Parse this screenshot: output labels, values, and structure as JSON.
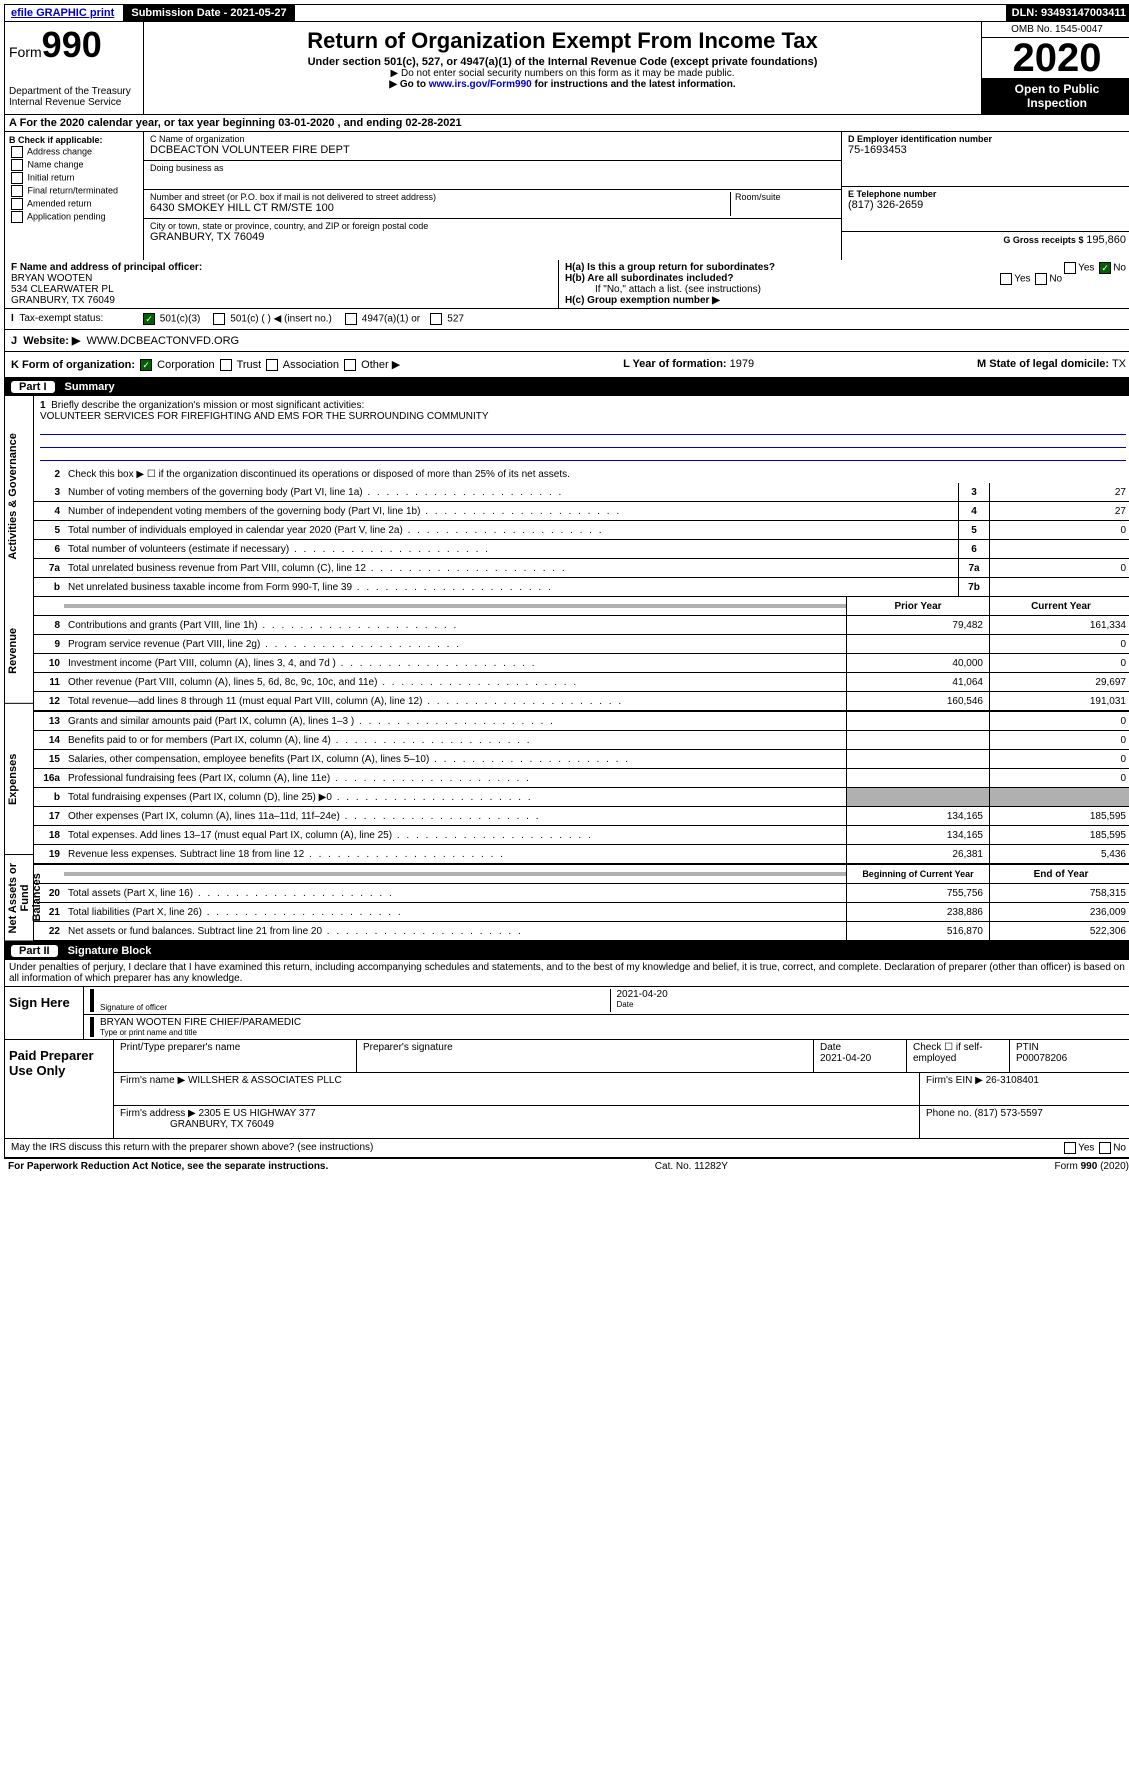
{
  "topbar": {
    "efile": "efile GRAPHIC print",
    "submission": "Submission Date - 2021-05-27",
    "dln": "DLN: 93493147003411"
  },
  "header": {
    "form_label": "Form",
    "form_num": "990",
    "dept": "Department of the Treasury",
    "irs": "Internal Revenue Service",
    "title": "Return of Organization Exempt From Income Tax",
    "subtitle": "Under section 501(c), 527, or 4947(a)(1) of the Internal Revenue Code (except private foundations)",
    "note1": "▶ Do not enter social security numbers on this form as it may be made public.",
    "note2_pre": "▶ Go to ",
    "note2_link": "www.irs.gov/Form990",
    "note2_post": " for instructions and the latest information.",
    "omb": "OMB No. 1545-0047",
    "year": "2020",
    "open": "Open to Public Inspection"
  },
  "rowA": "For the 2020 calendar year, or tax year beginning 03-01-2020    , and ending 02-28-2021",
  "blockB": {
    "title": "B Check if applicable:",
    "items": [
      "Address change",
      "Name change",
      "Initial return",
      "Final return/terminated",
      "Amended return",
      "Application pending"
    ]
  },
  "blockC": {
    "name_label": "C Name of organization",
    "name": "DCBEACTON VOLUNTEER FIRE DEPT",
    "dba_label": "Doing business as",
    "addr_label": "Number and street (or P.O. box if mail is not delivered to street address)",
    "addr": "6430 SMOKEY HILL CT RM/STE 100",
    "room_label": "Room/suite",
    "city_label": "City or town, state or province, country, and ZIP or foreign postal code",
    "city": "GRANBURY, TX  76049"
  },
  "blockD": {
    "ein_label": "D Employer identification number",
    "ein": "75-1693453",
    "phone_label": "E Telephone number",
    "phone": "(817) 326-2659",
    "gross_label": "G Gross receipts $",
    "gross": "195,860"
  },
  "blockF": {
    "label": "F  Name and address of principal officer:",
    "name": "BRYAN WOOTEN",
    "addr1": "534 CLEARWATER PL",
    "addr2": "GRANBURY, TX  76049"
  },
  "blockH": {
    "ha": "H(a)  Is this a group return for subordinates?",
    "hb": "H(b)  Are all subordinates included?",
    "hb_note": "If \"No,\" attach a list. (see instructions)",
    "hc": "H(c)  Group exemption number ▶"
  },
  "tax_status": {
    "label": "Tax-exempt status:",
    "opts": [
      "501(c)(3)",
      "501(c) (   ) ◀ (insert no.)",
      "4947(a)(1) or",
      "527"
    ]
  },
  "website": {
    "label": "Website: ▶",
    "val": "WWW.DCBEACTONVFD.ORG"
  },
  "rowK": {
    "k": "K Form of organization:",
    "opts": [
      "Corporation",
      "Trust",
      "Association",
      "Other ▶"
    ],
    "l_label": "L Year of formation:",
    "l": "1979",
    "m_label": "M State of legal domicile:",
    "m": "TX"
  },
  "part1": {
    "title": "Part I",
    "name": "Summary",
    "q1": "Briefly describe the organization's mission or most significant activities:",
    "mission": "VOLUNTEER SERVICES FOR FIREFIGHTING AND EMS FOR THE SURROUNDING COMMUNITY",
    "q2": "Check this box ▶ ☐  if the organization discontinued its operations or disposed of more than 25% of its net assets.",
    "side_labels": [
      "Activities & Governance",
      "Revenue",
      "Expenses",
      "Net Assets or Fund Balances"
    ],
    "col_headers": [
      "Prior Year",
      "Current Year"
    ],
    "col_headers2": [
      "Beginning of Current Year",
      "End of Year"
    ],
    "lines_gov": [
      {
        "n": "3",
        "d": "Number of voting members of the governing body (Part VI, line 1a)",
        "b": "3",
        "v": "27"
      },
      {
        "n": "4",
        "d": "Number of independent voting members of the governing body (Part VI, line 1b)",
        "b": "4",
        "v": "27"
      },
      {
        "n": "5",
        "d": "Total number of individuals employed in calendar year 2020 (Part V, line 2a)",
        "b": "5",
        "v": "0"
      },
      {
        "n": "6",
        "d": "Total number of volunteers (estimate if necessary)",
        "b": "6",
        "v": ""
      },
      {
        "n": "7a",
        "d": "Total unrelated business revenue from Part VIII, column (C), line 12",
        "b": "7a",
        "v": "0"
      },
      {
        "n": "b",
        "d": "Net unrelated business taxable income from Form 990-T, line 39",
        "b": "7b",
        "v": ""
      }
    ],
    "lines_rev": [
      {
        "n": "8",
        "d": "Contributions and grants (Part VIII, line 1h)",
        "p": "79,482",
        "c": "161,334"
      },
      {
        "n": "9",
        "d": "Program service revenue (Part VIII, line 2g)",
        "p": "",
        "c": "0"
      },
      {
        "n": "10",
        "d": "Investment income (Part VIII, column (A), lines 3, 4, and 7d )",
        "p": "40,000",
        "c": "0"
      },
      {
        "n": "11",
        "d": "Other revenue (Part VIII, column (A), lines 5, 6d, 8c, 9c, 10c, and 11e)",
        "p": "41,064",
        "c": "29,697"
      },
      {
        "n": "12",
        "d": "Total revenue—add lines 8 through 11 (must equal Part VIII, column (A), line 12)",
        "p": "160,546",
        "c": "191,031"
      }
    ],
    "lines_exp": [
      {
        "n": "13",
        "d": "Grants and similar amounts paid (Part IX, column (A), lines 1–3 )",
        "p": "",
        "c": "0"
      },
      {
        "n": "14",
        "d": "Benefits paid to or for members (Part IX, column (A), line 4)",
        "p": "",
        "c": "0"
      },
      {
        "n": "15",
        "d": "Salaries, other compensation, employee benefits (Part IX, column (A), lines 5–10)",
        "p": "",
        "c": "0"
      },
      {
        "n": "16a",
        "d": "Professional fundraising fees (Part IX, column (A), line 11e)",
        "p": "",
        "c": "0"
      },
      {
        "n": "b",
        "d": "Total fundraising expenses (Part IX, column (D), line 25) ▶0",
        "p": "gray",
        "c": "gray"
      },
      {
        "n": "17",
        "d": "Other expenses (Part IX, column (A), lines 11a–11d, 11f–24e)",
        "p": "134,165",
        "c": "185,595"
      },
      {
        "n": "18",
        "d": "Total expenses. Add lines 13–17 (must equal Part IX, column (A), line 25)",
        "p": "134,165",
        "c": "185,595"
      },
      {
        "n": "19",
        "d": "Revenue less expenses. Subtract line 18 from line 12",
        "p": "26,381",
        "c": "5,436"
      }
    ],
    "lines_net": [
      {
        "n": "20",
        "d": "Total assets (Part X, line 16)",
        "p": "755,756",
        "c": "758,315"
      },
      {
        "n": "21",
        "d": "Total liabilities (Part X, line 26)",
        "p": "238,886",
        "c": "236,009"
      },
      {
        "n": "22",
        "d": "Net assets or fund balances. Subtract line 21 from line 20",
        "p": "516,870",
        "c": "522,306"
      }
    ]
  },
  "part2": {
    "title": "Part II",
    "name": "Signature Block",
    "perjury": "Under penalties of perjury, I declare that I have examined this return, including accompanying schedules and statements, and to the best of my knowledge and belief, it is true, correct, and complete. Declaration of preparer (other than officer) is based on all information of which preparer has any knowledge."
  },
  "sign": {
    "label": "Sign Here",
    "sig_label": "Signature of officer",
    "date": "2021-04-20",
    "date_label": "Date",
    "name": "BRYAN WOOTEN  FIRE CHIEF/PARAMEDIC",
    "name_label": "Type or print name and title"
  },
  "paid": {
    "label": "Paid Preparer Use Only",
    "h1": "Print/Type preparer's name",
    "h2": "Preparer's signature",
    "h3": "Date",
    "date": "2021-04-20",
    "h4": "Check ☐ if self-employed",
    "h5": "PTIN",
    "ptin": "P00078206",
    "firm_label": "Firm's name    ▶",
    "firm": "WILLSHER & ASSOCIATES PLLC",
    "ein_label": "Firm's EIN ▶",
    "ein": "26-3108401",
    "addr_label": "Firm's address ▶",
    "addr1": "2305 E US HIGHWAY 377",
    "addr2": "GRANBURY, TX  76049",
    "phone_label": "Phone no.",
    "phone": "(817) 573-5597"
  },
  "discuss": "May the IRS discuss this return with the preparer shown above? (see instructions)",
  "footer": {
    "left": "For Paperwork Reduction Act Notice, see the separate instructions.",
    "mid": "Cat. No. 11282Y",
    "right": "Form 990 (2020)"
  }
}
